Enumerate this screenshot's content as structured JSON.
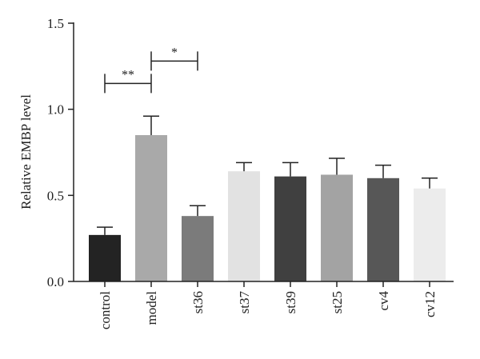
{
  "chart_data": {
    "type": "bar",
    "title": "",
    "xlabel": "",
    "ylabel": "Relative EMBP level",
    "ylim": [
      0,
      1.5
    ],
    "yticks": [
      0.0,
      0.5,
      1.0,
      1.5
    ],
    "ytick_labels": [
      "0.0",
      "0.5",
      "1.0",
      "1.5"
    ],
    "grid": false,
    "categories": [
      "control",
      "model",
      "st36",
      "st37",
      "st39",
      "st25",
      "cv4",
      "cv12"
    ],
    "values": [
      0.27,
      0.85,
      0.38,
      0.64,
      0.61,
      0.62,
      0.6,
      0.54
    ],
    "errors": [
      0.045,
      0.11,
      0.06,
      0.05,
      0.08,
      0.095,
      0.075,
      0.06
    ],
    "colors": [
      "#232323",
      "#a9a9a9",
      "#7b7b7b",
      "#e2e2e2",
      "#404040",
      "#a3a3a3",
      "#575757",
      "#ececec"
    ],
    "significance": [
      {
        "from": 0,
        "to": 1,
        "label": "**",
        "y": 1.15
      },
      {
        "from": 1,
        "to": 2,
        "label": "*",
        "y": 1.28
      }
    ]
  }
}
